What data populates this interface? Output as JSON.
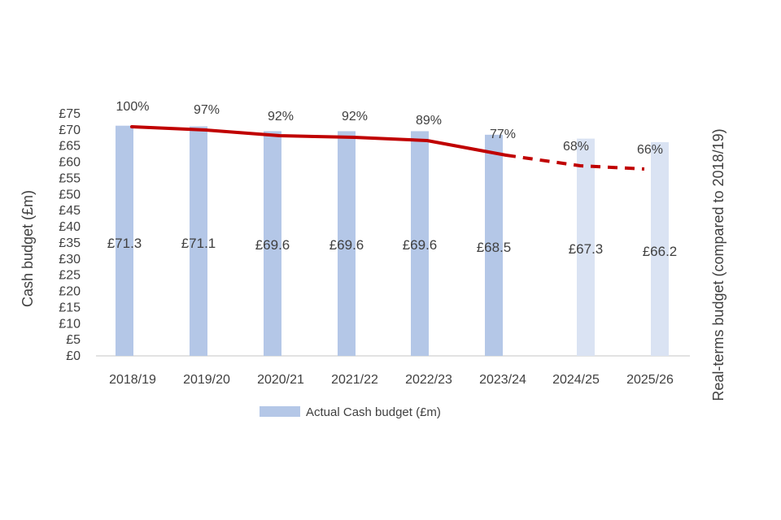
{
  "chart_data": {
    "type": "bar",
    "categories": [
      "2018/19",
      "2019/20",
      "2020/21",
      "2021/22",
      "2022/23",
      "2023/24",
      "2024/25",
      "2025/26"
    ],
    "series": [
      {
        "name": "Actual Cash budget (£m)",
        "values": [
          71.3,
          71.1,
          69.6,
          69.6,
          69.6,
          68.5,
          67.3,
          66.2
        ],
        "value_labels": [
          "£71.3",
          "£71.1",
          "£69.6",
          "£69.6",
          "£69.6",
          "£68.5",
          "£67.3",
          "£66.2"
        ],
        "projected_from_index": 6,
        "color": "#b4c7e7",
        "projected_color": "#dae3f3"
      },
      {
        "name": "Real-terms budget (compared to 2018/19)",
        "type": "line",
        "values": [
          100,
          97,
          92,
          92,
          89,
          77,
          68,
          66
        ],
        "value_labels": [
          "100%",
          "97%",
          "92%",
          "92%",
          "89%",
          "77%",
          "68%",
          "66%"
        ],
        "projected_from_index": 5,
        "color": "#c00000"
      }
    ],
    "y_axis": {
      "title": "Cash budget (£m)",
      "ylim": [
        0,
        75
      ],
      "ticks": [
        "£0",
        "£5",
        "£10",
        "£15",
        "£20",
        "£25",
        "£30",
        "£35",
        "£40",
        "£45",
        "£50",
        "£55",
        "£60",
        "£65",
        "£70",
        "£75"
      ]
    },
    "y2_axis": {
      "title": "Real-terms budget (compared to 2018/19)"
    },
    "legend": {
      "position": "bottom",
      "entries": [
        "Actual Cash budget (£m)"
      ]
    }
  }
}
